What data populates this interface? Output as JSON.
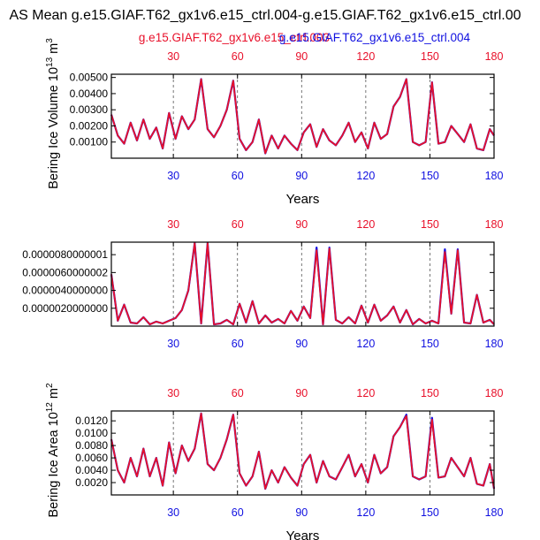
{
  "title": "AS Mean g.e15.GIAF.T62_gx1v6.e15_ctrl.004-g.e15.GIAF.T62_gx1v6.e15_ctrl.00",
  "legend": {
    "case_a": "g.e15.GIAF.T62_gx1v6.e15_ctrl.003",
    "case_b": "g.e15.GIAF.T62_gx1v6.e15_ctrl.004",
    "case_a_color": "#e8102a",
    "case_b_color": "#1010e0"
  },
  "colors": {
    "red": "#e8102a",
    "blue": "#1010e0",
    "axis": "#000000",
    "grid": "#555555"
  },
  "chart_data": [
    {
      "type": "line",
      "ylabel_main": "Bering Ice Volume 10",
      "ylabel_exp": "13",
      "ylabel_unit": " m",
      "ylabel_unit_exp": "3",
      "xlabel": "Years",
      "xlim": [
        1,
        180
      ],
      "ylim": [
        0.0,
        0.0052
      ],
      "xticks": [
        "30",
        "60",
        "90",
        "120",
        "150",
        "180"
      ],
      "yticks": [
        "0.00100",
        "0.00200",
        "0.00300",
        "0.00400",
        "0.00500"
      ],
      "ytick_values": [
        0.001,
        0.002,
        0.003,
        0.004,
        0.005
      ],
      "vlines": [
        30,
        60,
        90,
        120,
        150
      ],
      "x_step": 3,
      "series": [
        {
          "name": "g.e15.GIAF.T62_gx1v6.e15_ctrl.004",
          "color": "#1010e0",
          "values": [
            0.0027,
            0.0014,
            0.0009,
            0.0022,
            0.0011,
            0.0024,
            0.0012,
            0.0019,
            0.0006,
            0.0028,
            0.0012,
            0.0026,
            0.0018,
            0.0024,
            0.0049,
            0.0018,
            0.0013,
            0.002,
            0.003,
            0.0048,
            0.0012,
            0.0005,
            0.001,
            0.0024,
            0.0003,
            0.0014,
            0.0006,
            0.0014,
            0.0009,
            0.0005,
            0.0016,
            0.0021,
            0.0007,
            0.0018,
            0.0011,
            0.0008,
            0.0014,
            0.0022,
            0.001,
            0.0016,
            0.0006,
            0.0022,
            0.0012,
            0.0015,
            0.0032,
            0.0038,
            0.0049,
            0.001,
            0.0008,
            0.001,
            0.0047,
            0.0009,
            0.001,
            0.002,
            0.0015,
            0.001,
            0.0021,
            0.0006,
            0.0005,
            0.0018,
            0.0014
          ]
        },
        {
          "name": "g.e15.GIAF.T62_gx1v6.e15_ctrl.003",
          "color": "#e8102a",
          "values": [
            0.0027,
            0.0014,
            0.0009,
            0.0022,
            0.0011,
            0.0024,
            0.0012,
            0.0019,
            0.0006,
            0.0028,
            0.0012,
            0.0026,
            0.0018,
            0.0024,
            0.0049,
            0.0018,
            0.0013,
            0.002,
            0.003,
            0.0048,
            0.0012,
            0.0005,
            0.001,
            0.0024,
            0.0003,
            0.0014,
            0.0006,
            0.0014,
            0.0009,
            0.0005,
            0.0016,
            0.0021,
            0.0007,
            0.0018,
            0.0011,
            0.0008,
            0.0014,
            0.0022,
            0.001,
            0.0016,
            0.0006,
            0.0022,
            0.0012,
            0.0015,
            0.0032,
            0.0038,
            0.0049,
            0.001,
            0.0008,
            0.001,
            0.0047,
            0.0009,
            0.001,
            0.002,
            0.0015,
            0.001,
            0.0021,
            0.0006,
            0.0005,
            0.0018,
            0.0014
          ]
        }
      ]
    },
    {
      "type": "line",
      "ylabel_main": "",
      "ylabel_exp": "",
      "ylabel_unit": "",
      "ylabel_unit_exp": "",
      "xlabel": "",
      "xlim": [
        1,
        180
      ],
      "ylim": [
        0.0,
        9.4e-06
      ],
      "xticks": [
        "30",
        "60",
        "90",
        "120",
        "150",
        "180"
      ],
      "yticks": [
        "0.0000020000000",
        "0.0000040000000",
        "0.0000060000002",
        "0.0000080000001"
      ],
      "ytick_values": [
        2e-06,
        4e-06,
        6e-06,
        8e-06
      ],
      "vlines": [
        30,
        60,
        90,
        120,
        150
      ],
      "x_step": 3,
      "series": [
        {
          "name": "g.e15.GIAF.T62_gx1v6.e15_ctrl.004",
          "color": "#1010e0",
          "values": [
            5.8e-06,
            6e-07,
            2.4e-06,
            4e-07,
            3e-07,
            1e-06,
            2e-07,
            5e-07,
            3e-07,
            6e-07,
            9e-07,
            1.8e-06,
            4e-06,
            9.3e-06,
            3e-07,
            9.3e-06,
            2e-07,
            3e-07,
            7e-07,
            2e-07,
            2.5e-06,
            4e-07,
            2.8e-06,
            3e-07,
            1.2e-06,
            4e-07,
            8e-07,
            3e-07,
            1.7e-06,
            6e-07,
            2.2e-06,
            9e-07,
            8.8e-06,
            2e-07,
            8.8e-06,
            7e-07,
            3e-07,
            1e-06,
            3e-07,
            2.3e-06,
            4e-07,
            2.4e-06,
            6e-07,
            1.2e-06,
            2.2e-06,
            4e-07,
            1.8e-06,
            2e-07,
            8e-07,
            3e-07,
            6e-07,
            3e-07,
            8.6e-06,
            1.4e-06,
            8.6e-06,
            4e-07,
            3e-07,
            3.5e-06,
            4e-07,
            7e-07,
            2e-07
          ]
        },
        {
          "name": "g.e15.GIAF.T62_gx1v6.e15_ctrl.003",
          "color": "#e8102a",
          "values": [
            5.8e-06,
            6e-07,
            2.4e-06,
            4e-07,
            3e-07,
            1e-06,
            2e-07,
            5e-07,
            3e-07,
            6e-07,
            9e-07,
            1.8e-06,
            4e-06,
            9.3e-06,
            3e-07,
            9.3e-06,
            2e-07,
            3e-07,
            7e-07,
            2e-07,
            2.5e-06,
            4e-07,
            2.8e-06,
            3e-07,
            1.2e-06,
            4e-07,
            8e-07,
            3e-07,
            1.7e-06,
            6e-07,
            2.2e-06,
            9e-07,
            8.5e-06,
            2e-07,
            8.7e-06,
            7e-07,
            3e-07,
            1e-06,
            3e-07,
            2.3e-06,
            4e-07,
            2.4e-06,
            6e-07,
            1.2e-06,
            2.2e-06,
            4e-07,
            1.8e-06,
            2e-07,
            8e-07,
            3e-07,
            6e-07,
            3e-07,
            8.3e-06,
            1.4e-06,
            8.5e-06,
            4e-07,
            3e-07,
            3.5e-06,
            4e-07,
            7e-07,
            2e-07
          ]
        }
      ]
    },
    {
      "type": "line",
      "ylabel_main": "Bering Ice Area 10",
      "ylabel_exp": "12",
      "ylabel_unit": " m",
      "ylabel_unit_exp": "2",
      "xlabel": "Years",
      "xlim": [
        1,
        180
      ],
      "ylim": [
        0.0,
        0.0136
      ],
      "xticks": [
        "30",
        "60",
        "90",
        "120",
        "150",
        "180"
      ],
      "yticks": [
        "0.0020",
        "0.0040",
        "0.0060",
        "0.0080",
        "0.0100",
        "0.0120"
      ],
      "ytick_values": [
        0.002,
        0.004,
        0.006,
        0.008,
        0.01,
        0.012
      ],
      "vlines": [
        30,
        60,
        90,
        120,
        150
      ],
      "x_step": 3,
      "series": [
        {
          "name": "g.e15.GIAF.T62_gx1v6.e15_ctrl.004",
          "color": "#1010e0",
          "values": [
            0.009,
            0.004,
            0.002,
            0.006,
            0.003,
            0.0075,
            0.003,
            0.006,
            0.0015,
            0.0085,
            0.0035,
            0.008,
            0.0055,
            0.0075,
            0.0132,
            0.005,
            0.004,
            0.006,
            0.009,
            0.013,
            0.0035,
            0.0015,
            0.003,
            0.007,
            0.001,
            0.004,
            0.002,
            0.0045,
            0.0028,
            0.0015,
            0.005,
            0.0065,
            0.002,
            0.0055,
            0.003,
            0.0025,
            0.0045,
            0.0065,
            0.003,
            0.005,
            0.002,
            0.0065,
            0.0035,
            0.0045,
            0.0095,
            0.011,
            0.013,
            0.003,
            0.0025,
            0.003,
            0.0125,
            0.0028,
            0.003,
            0.006,
            0.0045,
            0.003,
            0.006,
            0.0018,
            0.0015,
            0.005,
            0.001
          ]
        },
        {
          "name": "g.e15.GIAF.T62_gx1v6.e15_ctrl.003",
          "color": "#e8102a",
          "values": [
            0.009,
            0.004,
            0.002,
            0.006,
            0.003,
            0.0075,
            0.003,
            0.006,
            0.0015,
            0.0085,
            0.0035,
            0.008,
            0.0055,
            0.0075,
            0.0132,
            0.005,
            0.004,
            0.006,
            0.009,
            0.013,
            0.0035,
            0.0015,
            0.003,
            0.007,
            0.001,
            0.004,
            0.002,
            0.0045,
            0.0028,
            0.0015,
            0.005,
            0.0065,
            0.002,
            0.0055,
            0.003,
            0.0025,
            0.0045,
            0.0065,
            0.003,
            0.005,
            0.002,
            0.0065,
            0.0035,
            0.0045,
            0.0095,
            0.011,
            0.0128,
            0.003,
            0.0025,
            0.003,
            0.0122,
            0.0028,
            0.003,
            0.006,
            0.0045,
            0.003,
            0.006,
            0.0018,
            0.0015,
            0.005,
            0.001
          ]
        }
      ]
    }
  ]
}
